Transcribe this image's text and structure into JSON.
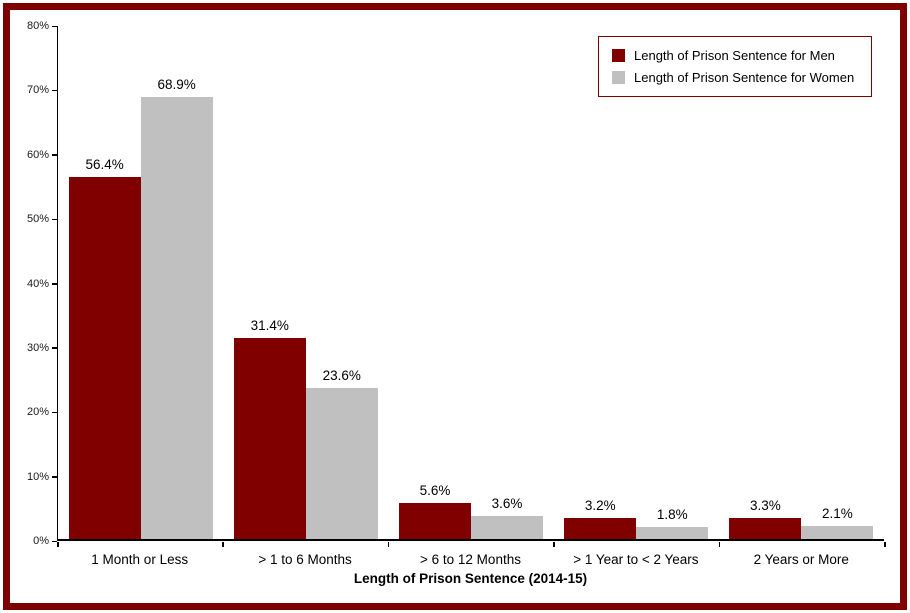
{
  "frame": {
    "border_color": "#7f0000"
  },
  "chart_data": {
    "type": "bar",
    "title": "",
    "xlabel": "Length of Prison Sentence (2014-15)",
    "ylabel": "",
    "ylim": [
      0,
      80
    ],
    "y_tick_step": 10,
    "y_tick_suffix": "%",
    "data_label_suffix": "%",
    "grid": false,
    "legend_position": "top-right",
    "background": "#ffffff",
    "axis_color": "#000000",
    "categories": [
      "1 Month or Less",
      "> 1 to 6 Months",
      "> 6 to 12 Months",
      "> 1 Year to < 2 Years",
      "2 Years or More"
    ],
    "series": [
      {
        "name": "Length of Prison Sentence for Men",
        "color": "#800000",
        "values": [
          56.4,
          31.4,
          5.6,
          3.2,
          3.3
        ]
      },
      {
        "name": "Length of Prison Sentence for Women",
        "color": "#c0c0c0",
        "values": [
          68.9,
          23.6,
          3.6,
          1.8,
          2.1
        ]
      }
    ]
  }
}
